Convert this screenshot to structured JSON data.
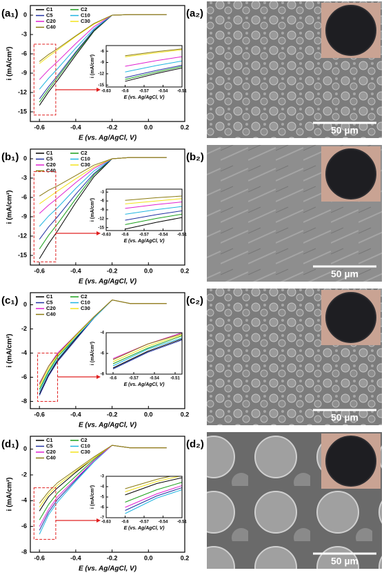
{
  "chart_data": [
    {
      "type": "line",
      "panel_label": "(a₁)",
      "x_label": "E (vs. Ag/AgCl, V)",
      "y_label": "i (mA/cm²)",
      "x": [
        -0.6,
        -0.55,
        -0.5,
        -0.4,
        -0.3,
        -0.2,
        -0.1,
        0,
        0.1
      ],
      "xlim": [
        -0.65,
        0.2
      ],
      "xticks": [
        -0.6,
        -0.4,
        -0.2,
        {
          "value": 0,
          "label": "0.0"
        },
        0.2
      ],
      "ylim": [
        -16.5,
        1.5
      ],
      "yticks": [
        0,
        -3,
        -6,
        -9,
        -12,
        -15
      ],
      "series": [
        {
          "name": "C1",
          "color": "#000000",
          "values": [
            -14,
            -11.9,
            -10.1,
            -6.2,
            -2.5,
            0,
            0.1,
            0.1,
            0.1
          ]
        },
        {
          "name": "C2",
          "color": "#1aa01a",
          "values": [
            -13.5,
            -11.5,
            -9.7,
            -5.9,
            -2.4,
            0,
            0.1,
            0.1,
            0.1
          ]
        },
        {
          "name": "C5",
          "color": "#1f2fa0",
          "values": [
            -13,
            -11.1,
            -9.4,
            -5.7,
            -2.3,
            0,
            0.1,
            0.1,
            0.1
          ]
        },
        {
          "name": "C10",
          "color": "#1fb4e0",
          "values": [
            -11.5,
            -9.8,
            -8.3,
            -5.1,
            -2.1,
            0,
            0.1,
            0.1,
            0.1
          ]
        },
        {
          "name": "C20",
          "color": "#e020d0",
          "values": [
            -10,
            -8.5,
            -7.2,
            -4.4,
            -1.8,
            0,
            0.1,
            0.1,
            0.1
          ]
        },
        {
          "name": "C30",
          "color": "#f2e21a",
          "values": [
            -7.5,
            -6.4,
            -5.4,
            -3.3,
            -1.4,
            0,
            0.1,
            0.1,
            0.1
          ]
        },
        {
          "name": "C40",
          "color": "#8a7a10",
          "values": [
            -7.2,
            -6.1,
            -5.2,
            -3.2,
            -1.3,
            0,
            0.1,
            0.1,
            0.1
          ]
        }
      ],
      "inset": {
        "xlim": [
          -0.63,
          -0.51
        ],
        "xticks": [
          -0.63,
          -0.6,
          -0.57,
          -0.54,
          -0.51
        ],
        "ylim": [
          -15.5,
          -4.5
        ],
        "yticks": [
          -6,
          -9,
          -12,
          -15
        ],
        "x_label": "E (vs. Ag/AgCl, V)",
        "y_label": "i (mA/cm²)"
      }
    },
    {
      "type": "line",
      "panel_label": "(b₁)",
      "x_label": "E (vs. Ag/AgCl, V)",
      "y_label": "i (mA/cm²)",
      "x": [
        -0.6,
        -0.55,
        -0.5,
        -0.4,
        -0.3,
        -0.2,
        -0.1,
        0,
        0.1
      ],
      "xlim": [
        -0.65,
        0.2
      ],
      "xticks": [
        -0.6,
        -0.4,
        -0.2,
        {
          "value": 0,
          "label": "0.0"
        },
        0.2
      ],
      "ylim": [
        -16.5,
        1.5
      ],
      "yticks": [
        0,
        -3,
        -6,
        -9,
        -12,
        -15
      ],
      "series": [
        {
          "name": "C1",
          "color": "#000000",
          "values": [
            -15.5,
            -13.2,
            -11.2,
            -6.8,
            -2.8,
            0,
            0.2,
            0.2,
            0.2
          ]
        },
        {
          "name": "C2",
          "color": "#1aa01a",
          "values": [
            -14,
            -11.9,
            -10.1,
            -6.2,
            -2.5,
            0,
            0.2,
            0.2,
            0.2
          ]
        },
        {
          "name": "C5",
          "color": "#1f2fa0",
          "values": [
            -12.5,
            -10.6,
            -9,
            -5.5,
            -2.3,
            0,
            0.2,
            0.2,
            0.2
          ]
        },
        {
          "name": "C10",
          "color": "#1fb4e0",
          "values": [
            -10.5,
            -8.9,
            -7.6,
            -4.6,
            -1.9,
            0,
            0.2,
            0.2,
            0.2
          ]
        },
        {
          "name": "C20",
          "color": "#e020d0",
          "values": [
            -8.5,
            -7.2,
            -6.1,
            -3.7,
            -1.5,
            0,
            0.2,
            0.2,
            0.2
          ]
        },
        {
          "name": "C30",
          "color": "#f2e21a",
          "values": [
            -7,
            -6,
            -5,
            -3.1,
            -1.3,
            0,
            0.2,
            0.2,
            0.2
          ]
        },
        {
          "name": "C40",
          "color": "#8a7a10",
          "values": [
            -5.8,
            -4.9,
            -4.2,
            -2.6,
            -1,
            0,
            0.2,
            0.2,
            0.2
          ]
        }
      ],
      "inset": {
        "xlim": [
          -0.63,
          -0.51
        ],
        "xticks": [
          -0.63,
          -0.6,
          -0.57,
          -0.54,
          -0.51
        ],
        "ylim": [
          -16,
          -2
        ],
        "yticks": [
          -3,
          -6,
          -9,
          -12,
          -15
        ],
        "x_label": "E (vs. Ag/AgCl, V)",
        "y_label": "i (mA/cm²)"
      }
    },
    {
      "type": "line",
      "panel_label": "(c₁)",
      "x_label": "E (vs. Ag/AgCl, V)",
      "y_label": "i (mA/cm²)",
      "x": [
        -0.6,
        -0.55,
        -0.5,
        -0.4,
        -0.3,
        -0.2,
        -0.1,
        0,
        0.1
      ],
      "xlim": [
        -0.65,
        0.2
      ],
      "xticks": [
        -0.6,
        -0.4,
        -0.2,
        {
          "value": 0,
          "label": "0.0"
        },
        0.2
      ],
      "ylim": [
        -8.6,
        1
      ],
      "yticks": [
        0,
        -2,
        -4,
        -6,
        -8
      ],
      "series": [
        {
          "name": "C1",
          "color": "#000000",
          "values": [
            -7.4,
            -5.8,
            -4.6,
            -2.8,
            -1.1,
            0.4,
            0.1,
            0.1,
            0.1
          ]
        },
        {
          "name": "C2",
          "color": "#1aa01a",
          "values": [
            -7,
            -5.5,
            -4.3,
            -2.7,
            -1.1,
            0.4,
            0.1,
            0.1,
            0.1
          ]
        },
        {
          "name": "C5",
          "color": "#1f2fa0",
          "values": [
            -7.5,
            -5.9,
            -4.7,
            -2.9,
            -1.1,
            0.4,
            0.1,
            0.1,
            0.1
          ]
        },
        {
          "name": "C10",
          "color": "#1fb4e0",
          "values": [
            -7.2,
            -5.6,
            -4.5,
            -2.7,
            -1.1,
            0.4,
            0.1,
            0.1,
            0.1
          ]
        },
        {
          "name": "C20",
          "color": "#e020d0",
          "values": [
            -6.5,
            -5.1,
            -4,
            -2.5,
            -1,
            0.4,
            0.1,
            0.1,
            0.1
          ]
        },
        {
          "name": "C30",
          "color": "#f2e21a",
          "values": [
            -6.8,
            -5.3,
            -4.2,
            -2.6,
            -1,
            0.4,
            0.1,
            0.1,
            0.1
          ]
        },
        {
          "name": "C40",
          "color": "#8a7a10",
          "values": [
            -6.6,
            -5.1,
            -4.1,
            -2.5,
            -1,
            0.4,
            0.1,
            0.1,
            0.1
          ]
        }
      ],
      "inset": {
        "xlim": [
          -0.61,
          -0.5
        ],
        "xticks": [
          -0.6,
          -0.57,
          -0.54,
          -0.51
        ],
        "ylim": [
          -8,
          -4
        ],
        "yticks": [
          -4,
          -6,
          -8
        ],
        "x_label": "E (vs. Ag/AgCl, V)",
        "y_label": "i (mA/cm²)"
      }
    },
    {
      "type": "line",
      "panel_label": "(d₁)",
      "x_label": "E (vs. Ag/AgCl, V)",
      "y_label": "i (mA/cm²)",
      "x": [
        -0.6,
        -0.55,
        -0.5,
        -0.4,
        -0.3,
        -0.2,
        -0.1,
        0,
        0.1
      ],
      "xlim": [
        -0.65,
        0.2
      ],
      "xticks": [
        -0.6,
        -0.4,
        -0.2,
        {
          "value": 0,
          "label": "0.0"
        },
        0.2
      ],
      "ylim": [
        -8,
        1
      ],
      "yticks": [
        0,
        -2,
        -4,
        -6,
        -8
      ],
      "series": [
        {
          "name": "C1",
          "color": "#000000",
          "values": [
            -4.8,
            -3.7,
            -3,
            -1.8,
            -0.7,
            0.3,
            0.1,
            0.1,
            0.1
          ]
        },
        {
          "name": "C2",
          "color": "#1aa01a",
          "values": [
            -5.5,
            -4.3,
            -3.4,
            -2.1,
            -0.8,
            0.3,
            0.1,
            0.1,
            0.1
          ]
        },
        {
          "name": "C5",
          "color": "#1f2fa0",
          "values": [
            -6.3,
            -4.9,
            -3.9,
            -2.4,
            -0.9,
            0.3,
            0.1,
            0.1,
            0.1
          ]
        },
        {
          "name": "C10",
          "color": "#1fb4e0",
          "values": [
            -6.6,
            -5.1,
            -4.1,
            -2.5,
            -1,
            0.3,
            0.1,
            0.1,
            0.1
          ]
        },
        {
          "name": "C20",
          "color": "#e020d0",
          "values": [
            -6,
            -4.7,
            -3.7,
            -2.3,
            -0.9,
            0.3,
            0.1,
            0.1,
            0.1
          ]
        },
        {
          "name": "C30",
          "color": "#f2e21a",
          "values": [
            -4.5,
            -3.5,
            -2.8,
            -1.7,
            -0.7,
            0.3,
            0.1,
            0.1,
            0.1
          ]
        },
        {
          "name": "C40",
          "color": "#8a7a10",
          "values": [
            -4.2,
            -3.3,
            -2.6,
            -1.6,
            -0.6,
            0.3,
            0.1,
            0.1,
            0.1
          ]
        }
      ],
      "inset": {
        "xlim": [
          -0.63,
          -0.51
        ],
        "xticks": [
          -0.63,
          -0.6,
          -0.57,
          -0.54,
          -0.51
        ],
        "ylim": [
          -7,
          -3
        ],
        "yticks": [
          -3,
          -4,
          -5,
          -6,
          -7
        ],
        "x_label": "E (vs. Ag/AgCl, V)",
        "y_label": "i (mA/cm²)"
      }
    }
  ],
  "images": [
    {
      "panel_label": "(a₂)",
      "scale_bar": "50 µm"
    },
    {
      "panel_label": "(b₂)",
      "scale_bar": "50 µm"
    },
    {
      "panel_label": "(c₂)",
      "scale_bar": "50 µm"
    },
    {
      "panel_label": "(d₂)",
      "scale_bar": "50 µm"
    }
  ]
}
